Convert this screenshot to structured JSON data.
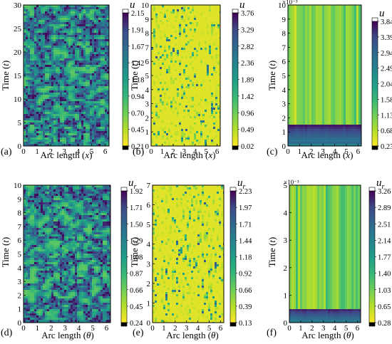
{
  "chart_data": [
    {
      "id": "a",
      "type": "heatmap",
      "panel_label": "(a)",
      "pattern": "labyrinth",
      "xlabel": "Arc length (x)",
      "xlabel_pre": "Arc length (",
      "xlabel_var": "x",
      "xlabel_post": ")",
      "ylabel": "Time (t)",
      "ylabel_pre": "Time (",
      "ylabel_var": "t",
      "ylabel_post": ")",
      "xlim": [
        0,
        6.283
      ],
      "ylim": [
        0,
        30
      ],
      "xticks": [
        "0",
        "1",
        "2",
        "3",
        "4",
        "5",
        "6"
      ],
      "xtick_values": [
        0,
        1,
        2,
        3,
        4,
        5,
        6
      ],
      "yticks": [
        "0",
        "5",
        "10",
        "15",
        "20",
        "25",
        "30"
      ],
      "ytick_values": [
        0,
        5,
        10,
        15,
        20,
        25,
        30
      ],
      "y_exponent": "",
      "colorbar": {
        "title": "u",
        "subscript": "",
        "ticks": [
          "2.15",
          "1.91",
          "1.67",
          "1.42",
          "1.18",
          "0.94",
          "0.70",
          "0.45",
          "0.21"
        ],
        "min": 0.21,
        "max": 2.15
      }
    },
    {
      "id": "b",
      "type": "heatmap",
      "panel_label": "(b)",
      "pattern": "stripes",
      "xlabel": "Arc length (x)",
      "xlabel_pre": "Arc length (",
      "xlabel_var": "x",
      "xlabel_post": ")",
      "ylabel": "Time (t)",
      "ylabel_pre": "Time (",
      "ylabel_var": "t",
      "ylabel_post": ")",
      "xlim": [
        0,
        6.283
      ],
      "ylim": [
        0,
        10
      ],
      "xticks": [
        "0",
        "1",
        "2",
        "3",
        "4",
        "5",
        "6"
      ],
      "xtick_values": [
        0,
        1,
        2,
        3,
        4,
        5,
        6
      ],
      "yticks": [
        "0",
        "1",
        "2",
        "3",
        "4",
        "5",
        "6",
        "7",
        "8",
        "9",
        "10"
      ],
      "ytick_values": [
        0,
        1,
        2,
        3,
        4,
        5,
        6,
        7,
        8,
        9,
        10
      ],
      "y_exponent": "",
      "colorbar": {
        "title": "u",
        "subscript": "",
        "ticks": [
          "3.76",
          "3.29",
          "2.82",
          "2.36",
          "1.89",
          "1.42",
          "0.96",
          "0.49",
          "0.02"
        ],
        "min": 0.02,
        "max": 3.76
      }
    },
    {
      "id": "c",
      "type": "heatmap",
      "panel_label": "(c)",
      "pattern": "vertical",
      "xlabel": "Arc length (x)",
      "xlabel_pre": "Arc length (",
      "xlabel_var": "x",
      "xlabel_post": ")",
      "ylabel": "Time (t)",
      "ylabel_pre": "Time (",
      "ylabel_var": "t",
      "ylabel_post": ")",
      "xlim": [
        0,
        6.283
      ],
      "ylim": [
        0,
        10
      ],
      "xticks": [
        "0",
        "1",
        "2",
        "3",
        "4",
        "5",
        "6"
      ],
      "xtick_values": [
        0,
        1,
        2,
        3,
        4,
        5,
        6
      ],
      "yticks": [
        "0",
        "1",
        "2",
        "3",
        "4",
        "5",
        "6",
        "7",
        "8",
        "9",
        "10"
      ],
      "ytick_values": [
        0,
        1,
        2,
        3,
        4,
        5,
        6,
        7,
        8,
        9,
        10
      ],
      "y_exponent": "×10⁻³",
      "colorbar": {
        "title": "u",
        "subscript": "",
        "ticks": [
          "3.84",
          "3.39",
          "2.94",
          "2.49",
          "2.04",
          "1.58",
          "1.13",
          "0.68",
          "0.23"
        ],
        "min": 0.23,
        "max": 3.84
      }
    },
    {
      "id": "d",
      "type": "heatmap",
      "panel_label": "(d)",
      "pattern": "labyrinth",
      "xlabel": "Arc length (θ)",
      "xlabel_pre": "Arc length (",
      "xlabel_var": "θ",
      "xlabel_post": ")",
      "ylabel": "Time (t)",
      "ylabel_pre": "Time (",
      "ylabel_var": "t",
      "ylabel_post": ")",
      "xlim": [
        0,
        6.283
      ],
      "ylim": [
        0,
        10
      ],
      "xticks": [
        "0",
        "1",
        "2",
        "3",
        "4",
        "5",
        "6"
      ],
      "xtick_values": [
        0,
        1,
        2,
        3,
        4,
        5,
        6
      ],
      "yticks": [
        "0",
        "1",
        "2",
        "3",
        "4",
        "5",
        "6",
        "7",
        "8",
        "9",
        "10"
      ],
      "ytick_values": [
        0,
        1,
        2,
        3,
        4,
        5,
        6,
        7,
        8,
        9,
        10
      ],
      "y_exponent": "",
      "colorbar": {
        "title": "u",
        "subscript": "r",
        "ticks": [
          "1.92",
          "1.71",
          "1.50",
          "1.29",
          "1.08",
          "0.87",
          "0.66",
          "0.45",
          "0.24"
        ],
        "min": 0.24,
        "max": 1.92
      }
    },
    {
      "id": "e",
      "type": "heatmap",
      "panel_label": "(e)",
      "pattern": "stripes",
      "xlabel": "Arc length (θ)",
      "xlabel_pre": "Arc length (",
      "xlabel_var": "θ",
      "xlabel_post": ")",
      "ylabel": "Time (t)",
      "ylabel_pre": "Time (",
      "ylabel_var": "t",
      "ylabel_post": ")",
      "xlim": [
        0,
        6.283
      ],
      "ylim": [
        0,
        7
      ],
      "xticks": [
        "0",
        "1",
        "2",
        "3",
        "4",
        "5",
        "6"
      ],
      "xtick_values": [
        0,
        1,
        2,
        3,
        4,
        5,
        6
      ],
      "yticks": [
        "0",
        "1",
        "2",
        "3",
        "4",
        "5",
        "6",
        "7"
      ],
      "ytick_values": [
        0,
        1,
        2,
        3,
        4,
        5,
        6,
        7
      ],
      "y_exponent": "",
      "colorbar": {
        "title": "u",
        "subscript": "r",
        "ticks": [
          "2.23",
          "1.97",
          "1.71",
          "1.44",
          "1.18",
          "0.92",
          "0.66",
          "0.39",
          "0.13"
        ],
        "min": 0.13,
        "max": 2.23
      }
    },
    {
      "id": "f",
      "type": "heatmap",
      "panel_label": "(f)",
      "pattern": "vertical",
      "xlabel": "Arc length (θ)",
      "xlabel_pre": "Arc length (",
      "xlabel_var": "θ",
      "xlabel_post": ")",
      "ylabel": "Time (t)",
      "ylabel_pre": "Time (",
      "ylabel_var": "t",
      "ylabel_post": ")",
      "xlim": [
        0,
        6.283
      ],
      "ylim": [
        0,
        5
      ],
      "xticks": [
        "0",
        "1",
        "2",
        "3",
        "4",
        "5",
        "6"
      ],
      "xtick_values": [
        0,
        1,
        2,
        3,
        4,
        5,
        6
      ],
      "yticks": [
        "0",
        "1",
        "2",
        "3",
        "4",
        "5"
      ],
      "ytick_values": [
        0,
        1,
        2,
        3,
        4,
        5
      ],
      "y_exponent": "×10⁻³",
      "colorbar": {
        "title": "u",
        "subscript": "r",
        "ticks": [
          "3.26",
          "2.89",
          "2.51",
          "2.14",
          "1.77",
          "1.40",
          "1.03",
          "0.65",
          "0.28"
        ],
        "min": 0.28,
        "max": 3.26
      }
    }
  ]
}
